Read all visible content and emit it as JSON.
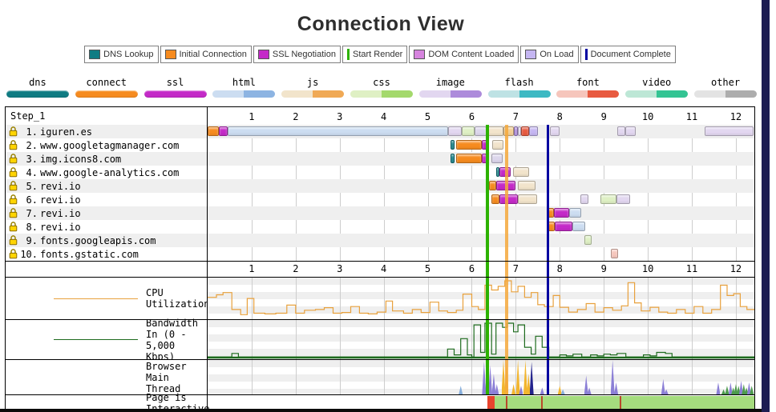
{
  "header": {
    "title": "Connection View"
  },
  "colors": {
    "right_strip": "#1C1C52"
  },
  "legend": [
    {
      "label": "DNS Lookup",
      "color": "#0F7C83",
      "shape": "box"
    },
    {
      "label": "Initial Connection",
      "color": "#F68B1F",
      "shape": "box"
    },
    {
      "label": "SSL Negotiation",
      "color": "#C42AC8",
      "shape": "box"
    },
    {
      "label": "Start Render",
      "color": "#2DB200",
      "shape": "line"
    },
    {
      "label": "DOM Content Loaded",
      "color": "#D684DE",
      "shape": "box"
    },
    {
      "label": "On Load",
      "color": "#C5B6F2",
      "shape": "box"
    },
    {
      "label": "Document Complete",
      "color": "#0000A0",
      "shape": "line"
    }
  ],
  "mime_legend": [
    {
      "label": "dns",
      "solid": "#0F7C83"
    },
    {
      "label": "connect",
      "solid": "#F68B1F"
    },
    {
      "label": "ssl",
      "solid": "#C42AC8"
    },
    {
      "label": "html",
      "light": "#CCDDF1",
      "dark": "#8DB4E2"
    },
    {
      "label": "js",
      "light": "#F2E4CB",
      "dark": "#F0A955"
    },
    {
      "label": "css",
      "light": "#DFF0C4",
      "dark": "#A4D96C"
    },
    {
      "label": "image",
      "light": "#E2D7F0",
      "dark": "#AD8BDB"
    },
    {
      "label": "flash",
      "light": "#BEE2E4",
      "dark": "#3DB9C3"
    },
    {
      "label": "font",
      "light": "#F6C6BC",
      "dark": "#E85A40"
    },
    {
      "label": "video",
      "light": "#BDE7D6",
      "dark": "#33C493"
    },
    {
      "label": "other",
      "light": "#E3E3E3",
      "dark": "#ADADAD"
    }
  ],
  "chart_data": {
    "type": "waterfall",
    "timeline": {
      "xmax": 12.42,
      "unit": "seconds",
      "ticks": [
        1,
        2,
        3,
        4,
        5,
        6,
        7,
        8,
        9,
        10,
        11,
        12
      ]
    },
    "palette": {
      "dns": "#0F7C83",
      "connect": "#F68B1F",
      "ssl": "#C42AC8",
      "htmlLight": "#CCDDF1",
      "htmlDark": "#8DB4E2",
      "jsLight": "#F2E4CB",
      "jsMid": "#F3CE93",
      "jsDark": "#F0A955",
      "cssLight": "#DFF0C4",
      "cssDark": "#A4D96C",
      "imageLight": "#E2D7F0",
      "imageDark": "#AD8BDB",
      "fontLight": "#F6C6BC",
      "fontDark": "#E85A40",
      "lavender": "#DCD6EC",
      "onLoad": "#C5B6F2"
    },
    "waterfall": {
      "step_label": "Step_1",
      "rows": [
        {
          "num": "1.",
          "host": "iguren.es",
          "segments": [
            [
              0,
              0.25,
              "connect"
            ],
            [
              0.25,
              0.46,
              "ssl"
            ],
            [
              0.46,
              5.46,
              "htmlLight"
            ],
            [
              5.46,
              5.78,
              "imageLight"
            ],
            [
              5.78,
              6.07,
              "cssLight"
            ],
            [
              6.07,
              6.34,
              "lavender"
            ],
            [
              6.34,
              6.72,
              "jsLight"
            ],
            [
              6.72,
              6.96,
              "jsMid"
            ],
            [
              6.96,
              7.04,
              "imageDark"
            ],
            [
              7.04,
              7.12,
              "imageLight"
            ],
            [
              7.12,
              7.3,
              "fontDark"
            ],
            [
              7.3,
              7.5,
              "onLoad"
            ],
            [
              7.78,
              8.0,
              "imageLight"
            ],
            [
              9.3,
              9.48,
              "imageLight"
            ],
            [
              9.48,
              9.72,
              "imageLight"
            ],
            [
              11.3,
              12.4,
              "imageLight"
            ]
          ]
        },
        {
          "num": "2.",
          "host": "www.googletagmanager.com",
          "segments": [
            [
              5.52,
              5.6,
              "dns"
            ],
            [
              5.64,
              6.22,
              "connect"
            ],
            [
              6.22,
              6.37,
              "ssl"
            ],
            [
              6.46,
              6.72,
              "jsLight"
            ]
          ]
        },
        {
          "num": "3.",
          "host": "img.icons8.com",
          "segments": [
            [
              5.52,
              5.6,
              "dns"
            ],
            [
              5.64,
              6.22,
              "connect"
            ],
            [
              6.22,
              6.34,
              "ssl"
            ],
            [
              6.44,
              6.7,
              "lavender"
            ]
          ]
        },
        {
          "num": "4.",
          "host": "www.google-analytics.com",
          "segments": [
            [
              6.55,
              6.63,
              "dns"
            ],
            [
              6.63,
              6.88,
              "ssl"
            ],
            [
              6.93,
              7.3,
              "jsLight"
            ]
          ]
        },
        {
          "num": "5.",
          "host": "revi.io",
          "segments": [
            [
              6.33,
              6.4,
              "dns"
            ],
            [
              6.4,
              6.56,
              "connect"
            ],
            [
              6.56,
              7.0,
              "ssl"
            ],
            [
              7.05,
              7.45,
              "jsLight"
            ]
          ]
        },
        {
          "num": "6.",
          "host": "revi.io",
          "segments": [
            [
              6.45,
              6.62,
              "connect"
            ],
            [
              6.62,
              7.05,
              "ssl"
            ],
            [
              7.05,
              7.48,
              "jsLight"
            ],
            [
              8.47,
              8.65,
              "imageLight"
            ],
            [
              8.93,
              9.29,
              "cssLight"
            ],
            [
              9.29,
              9.6,
              "imageLight"
            ]
          ]
        },
        {
          "num": "7.",
          "host": "revi.io",
          "segments": [
            [
              7.7,
              7.86,
              "connect"
            ],
            [
              7.86,
              8.22,
              "ssl"
            ],
            [
              8.22,
              8.48,
              "htmlLight"
            ]
          ]
        },
        {
          "num": "8.",
          "host": "revi.io",
          "segments": [
            [
              7.7,
              7.88,
              "connect"
            ],
            [
              7.88,
              8.28,
              "ssl"
            ],
            [
              8.28,
              8.58,
              "htmlLight"
            ]
          ]
        },
        {
          "num": "9.",
          "host": "fonts.googleapis.com",
          "segments": [
            [
              8.56,
              8.72,
              "cssLight"
            ]
          ]
        },
        {
          "num": "10.",
          "host": "fonts.gstatic.com",
          "segments": [
            [
              9.16,
              9.32,
              "fontLight"
            ]
          ]
        }
      ]
    },
    "markers": [
      {
        "name": "start-render-line",
        "t": 6.36,
        "color": "#2DB200",
        "width": 4,
        "opacity": 1
      },
      {
        "name": "paint-marker-line",
        "t": 6.8,
        "color": "#F5A83B",
        "width": 4,
        "opacity": 0.85
      },
      {
        "name": "document-complete-line",
        "t": 7.73,
        "color": "#0000A0",
        "width": 3,
        "opacity": 1
      }
    ],
    "cpu": {
      "label": "CPU Utilization",
      "color": "#E8A13D",
      "ymax_percent": 100,
      "points": [
        [
          0,
          55
        ],
        [
          0.2,
          62
        ],
        [
          0.35,
          68
        ],
        [
          0.55,
          22
        ],
        [
          0.75,
          8
        ],
        [
          0.9,
          52
        ],
        [
          1.05,
          12
        ],
        [
          1.3,
          10
        ],
        [
          1.55,
          12
        ],
        [
          1.8,
          34
        ],
        [
          2.0,
          12
        ],
        [
          2.2,
          20
        ],
        [
          2.45,
          22
        ],
        [
          2.65,
          27
        ],
        [
          2.85,
          12
        ],
        [
          3.05,
          14
        ],
        [
          3.25,
          30
        ],
        [
          3.45,
          12
        ],
        [
          3.65,
          10
        ],
        [
          3.85,
          15
        ],
        [
          4.05,
          45
        ],
        [
          4.2,
          18
        ],
        [
          4.45,
          12
        ],
        [
          4.65,
          22
        ],
        [
          4.85,
          14
        ],
        [
          5.05,
          42
        ],
        [
          5.25,
          18
        ],
        [
          5.45,
          14
        ],
        [
          5.65,
          20
        ],
        [
          5.8,
          64
        ],
        [
          6.0,
          30
        ],
        [
          6.15,
          22
        ],
        [
          6.3,
          88
        ],
        [
          6.45,
          75
        ],
        [
          6.6,
          85
        ],
        [
          6.75,
          100
        ],
        [
          6.9,
          70
        ],
        [
          7.05,
          85
        ],
        [
          7.2,
          55
        ],
        [
          7.35,
          68
        ],
        [
          7.5,
          35
        ],
        [
          7.65,
          30
        ],
        [
          7.85,
          60
        ],
        [
          8.0,
          28
        ],
        [
          8.2,
          15
        ],
        [
          8.4,
          22
        ],
        [
          8.6,
          38
        ],
        [
          8.8,
          15
        ],
        [
          9.0,
          27
        ],
        [
          9.2,
          20
        ],
        [
          9.4,
          32
        ],
        [
          9.55,
          95
        ],
        [
          9.7,
          40
        ],
        [
          9.85,
          18
        ],
        [
          10.05,
          28
        ],
        [
          10.25,
          15
        ],
        [
          10.45,
          12
        ],
        [
          10.65,
          22
        ],
        [
          10.85,
          12
        ],
        [
          11.05,
          30
        ],
        [
          11.25,
          12
        ],
        [
          11.45,
          22
        ],
        [
          11.65,
          88
        ],
        [
          11.8,
          60
        ],
        [
          11.95,
          65
        ],
        [
          12.1,
          30
        ],
        [
          12.25,
          22
        ]
      ]
    },
    "bandwidth": {
      "label": "Bandwidth In (0 - 5,000 Kbps)",
      "color": "#1E6B1E",
      "ymax_kbps": 5000,
      "points": [
        [
          0,
          2
        ],
        [
          0.5,
          2
        ],
        [
          0.55,
          12
        ],
        [
          0.7,
          2
        ],
        [
          5.35,
          2
        ],
        [
          5.45,
          25
        ],
        [
          5.6,
          8
        ],
        [
          5.75,
          55
        ],
        [
          5.9,
          8
        ],
        [
          6.0,
          2
        ],
        [
          6.05,
          95
        ],
        [
          6.2,
          15
        ],
        [
          6.3,
          100
        ],
        [
          6.45,
          10
        ],
        [
          6.55,
          100
        ],
        [
          6.7,
          88
        ],
        [
          6.8,
          100
        ],
        [
          6.95,
          75
        ],
        [
          7.05,
          95
        ],
        [
          7.2,
          30
        ],
        [
          7.35,
          10
        ],
        [
          7.45,
          62
        ],
        [
          7.6,
          30
        ],
        [
          7.75,
          2
        ],
        [
          8.0,
          8
        ],
        [
          8.15,
          5
        ],
        [
          8.3,
          10
        ],
        [
          8.5,
          2
        ],
        [
          8.7,
          8
        ],
        [
          8.85,
          5
        ],
        [
          9.0,
          10
        ],
        [
          9.15,
          8
        ],
        [
          9.3,
          12
        ],
        [
          9.5,
          2
        ],
        [
          9.9,
          8
        ],
        [
          10.05,
          5
        ],
        [
          10.2,
          15
        ],
        [
          10.4,
          12
        ],
        [
          10.55,
          2
        ],
        [
          12.42,
          2
        ]
      ]
    },
    "main_thread": {
      "label": "Browser Main Thread",
      "colors": {
        "purple": "#8B7FD6",
        "orange": "#F2B52E",
        "navy": "#23238C",
        "green": "#4C9A4C",
        "blue": "#86AEDC"
      },
      "bars": [
        [
          5.75,
          25,
          "blue"
        ],
        [
          6.28,
          95,
          "purple"
        ],
        [
          6.35,
          100,
          "purple"
        ],
        [
          6.42,
          85,
          "purple"
        ],
        [
          6.5,
          60,
          "purple"
        ],
        [
          6.57,
          30,
          "purple"
        ],
        [
          6.72,
          100,
          "orange"
        ],
        [
          6.79,
          95,
          "orange"
        ],
        [
          6.95,
          30,
          "orange"
        ],
        [
          7.05,
          100,
          "orange"
        ],
        [
          7.12,
          25,
          "purple"
        ],
        [
          7.22,
          100,
          "orange"
        ],
        [
          7.29,
          60,
          "orange"
        ],
        [
          7.36,
          95,
          "navy"
        ],
        [
          7.6,
          20,
          "purple"
        ],
        [
          8.0,
          25,
          "orange"
        ],
        [
          8.07,
          15,
          "blue"
        ],
        [
          8.6,
          55,
          "purple"
        ],
        [
          8.67,
          20,
          "purple"
        ],
        [
          9.2,
          100,
          "purple"
        ],
        [
          9.28,
          35,
          "purple"
        ],
        [
          10.35,
          45,
          "purple"
        ],
        [
          10.42,
          15,
          "purple"
        ],
        [
          11.6,
          35,
          "purple"
        ],
        [
          11.72,
          15,
          "green"
        ],
        [
          11.8,
          25,
          "green"
        ],
        [
          11.88,
          35,
          "purple"
        ],
        [
          11.94,
          20,
          "green"
        ],
        [
          12.0,
          30,
          "green"
        ],
        [
          12.06,
          25,
          "green"
        ],
        [
          12.12,
          40,
          "purple"
        ],
        [
          12.18,
          30,
          "green"
        ],
        [
          12.24,
          20,
          "green"
        ],
        [
          12.3,
          35,
          "purple"
        ],
        [
          12.36,
          25,
          "green"
        ]
      ]
    },
    "interactive": {
      "label": "Page is Interactive",
      "segments": [
        {
          "start": 6.36,
          "end": 6.52,
          "color": "#E8442E"
        },
        {
          "start": 6.52,
          "end": 12.42,
          "color": "#A5DC7E"
        }
      ],
      "ticks": [
        6.78,
        7.58,
        9.36
      ],
      "tick_color": "#B9482B"
    }
  }
}
